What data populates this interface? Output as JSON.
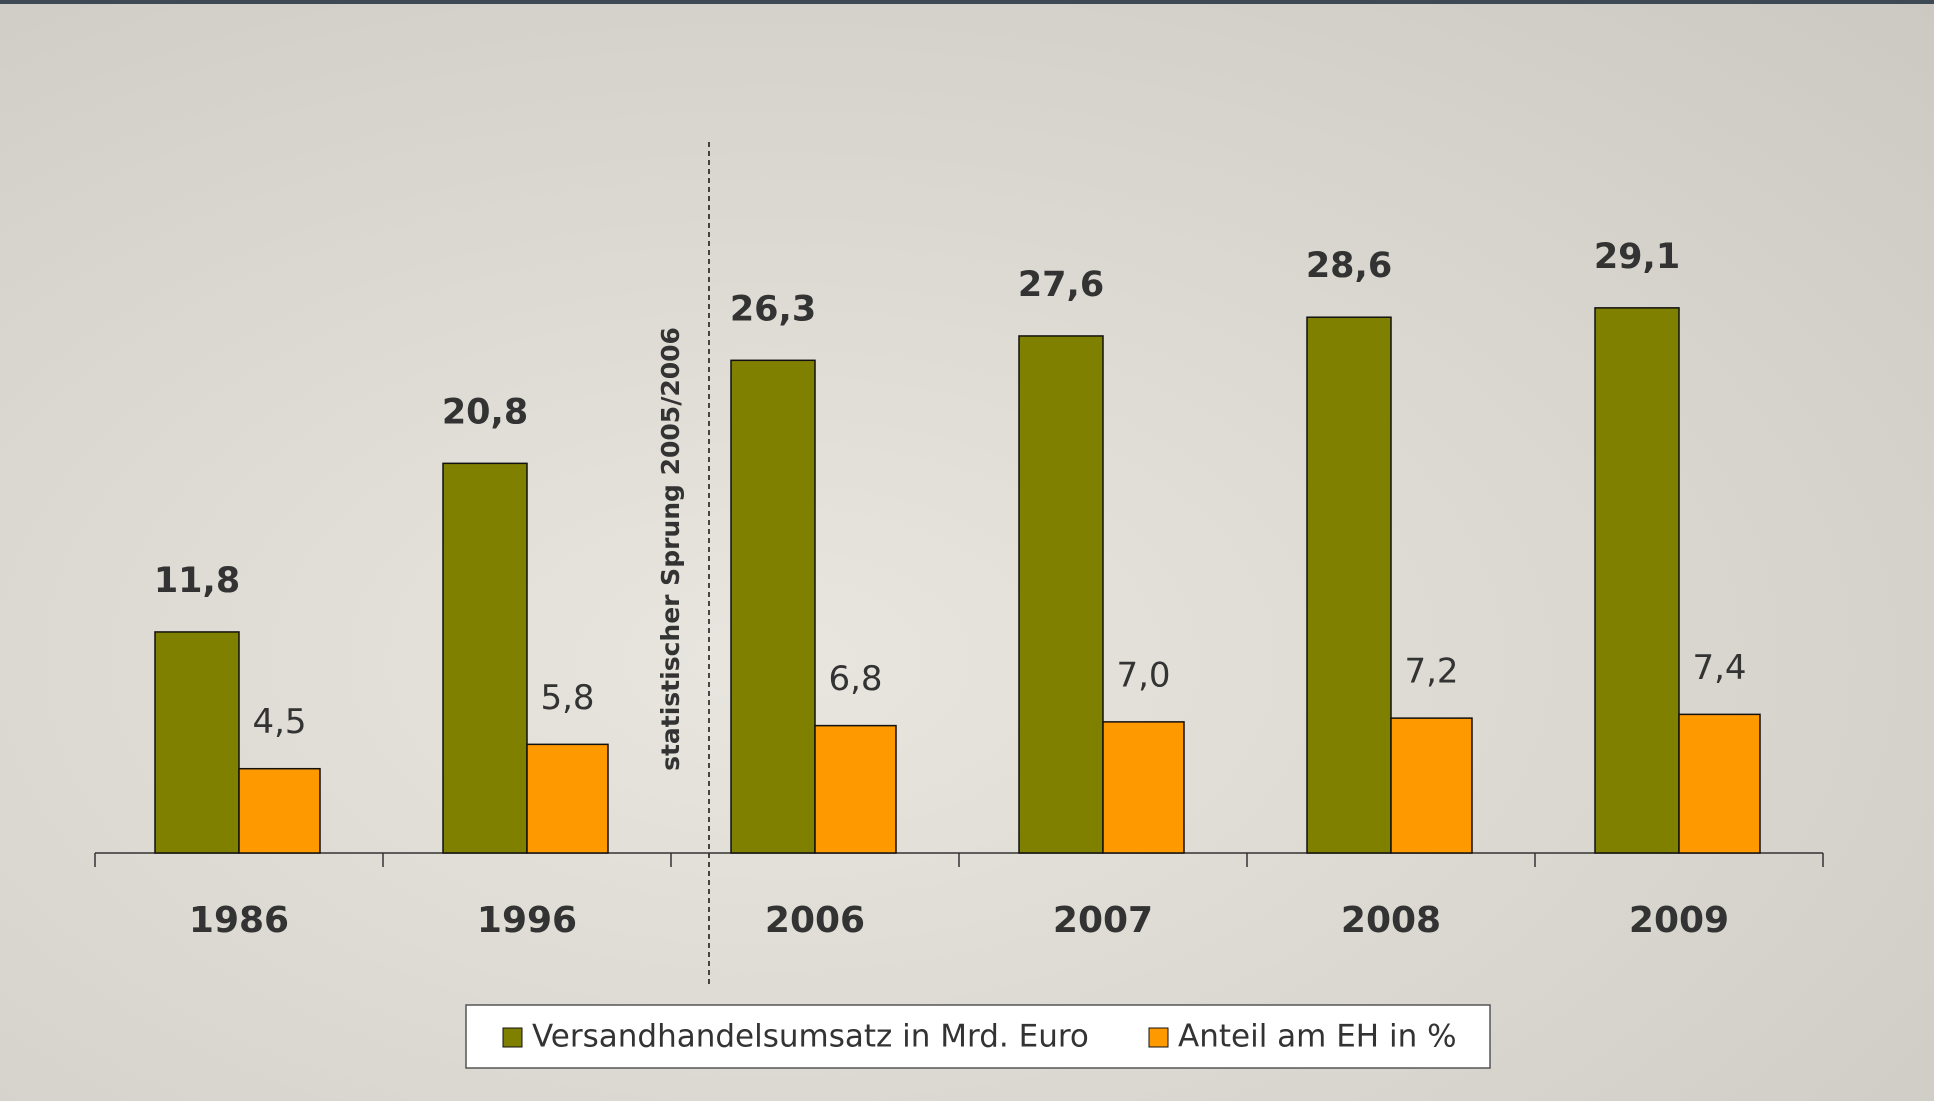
{
  "chart_data": {
    "type": "bar",
    "categories": [
      "1986",
      "1996",
      "2006",
      "2007",
      "2008",
      "2009"
    ],
    "series": [
      {
        "name": "Versandhandelsumsatz in Mrd. Euro",
        "color": "#808000",
        "values": [
          11.8,
          20.8,
          26.3,
          27.6,
          28.6,
          29.1
        ],
        "value_labels": [
          "11,8",
          "20,8",
          "26,3",
          "27,6",
          "28,6",
          "29,1"
        ]
      },
      {
        "name": "Anteil am EH in %",
        "color": "#ff9900",
        "values": [
          4.5,
          5.8,
          6.8,
          7.0,
          7.2,
          7.4
        ],
        "value_labels": [
          "4,5",
          "5,8",
          "6,8",
          "7,0",
          "7,2",
          "7,4"
        ]
      }
    ],
    "ylim": [
      0,
      30
    ],
    "annotation": "statistischer Sprung 2005/2006"
  }
}
